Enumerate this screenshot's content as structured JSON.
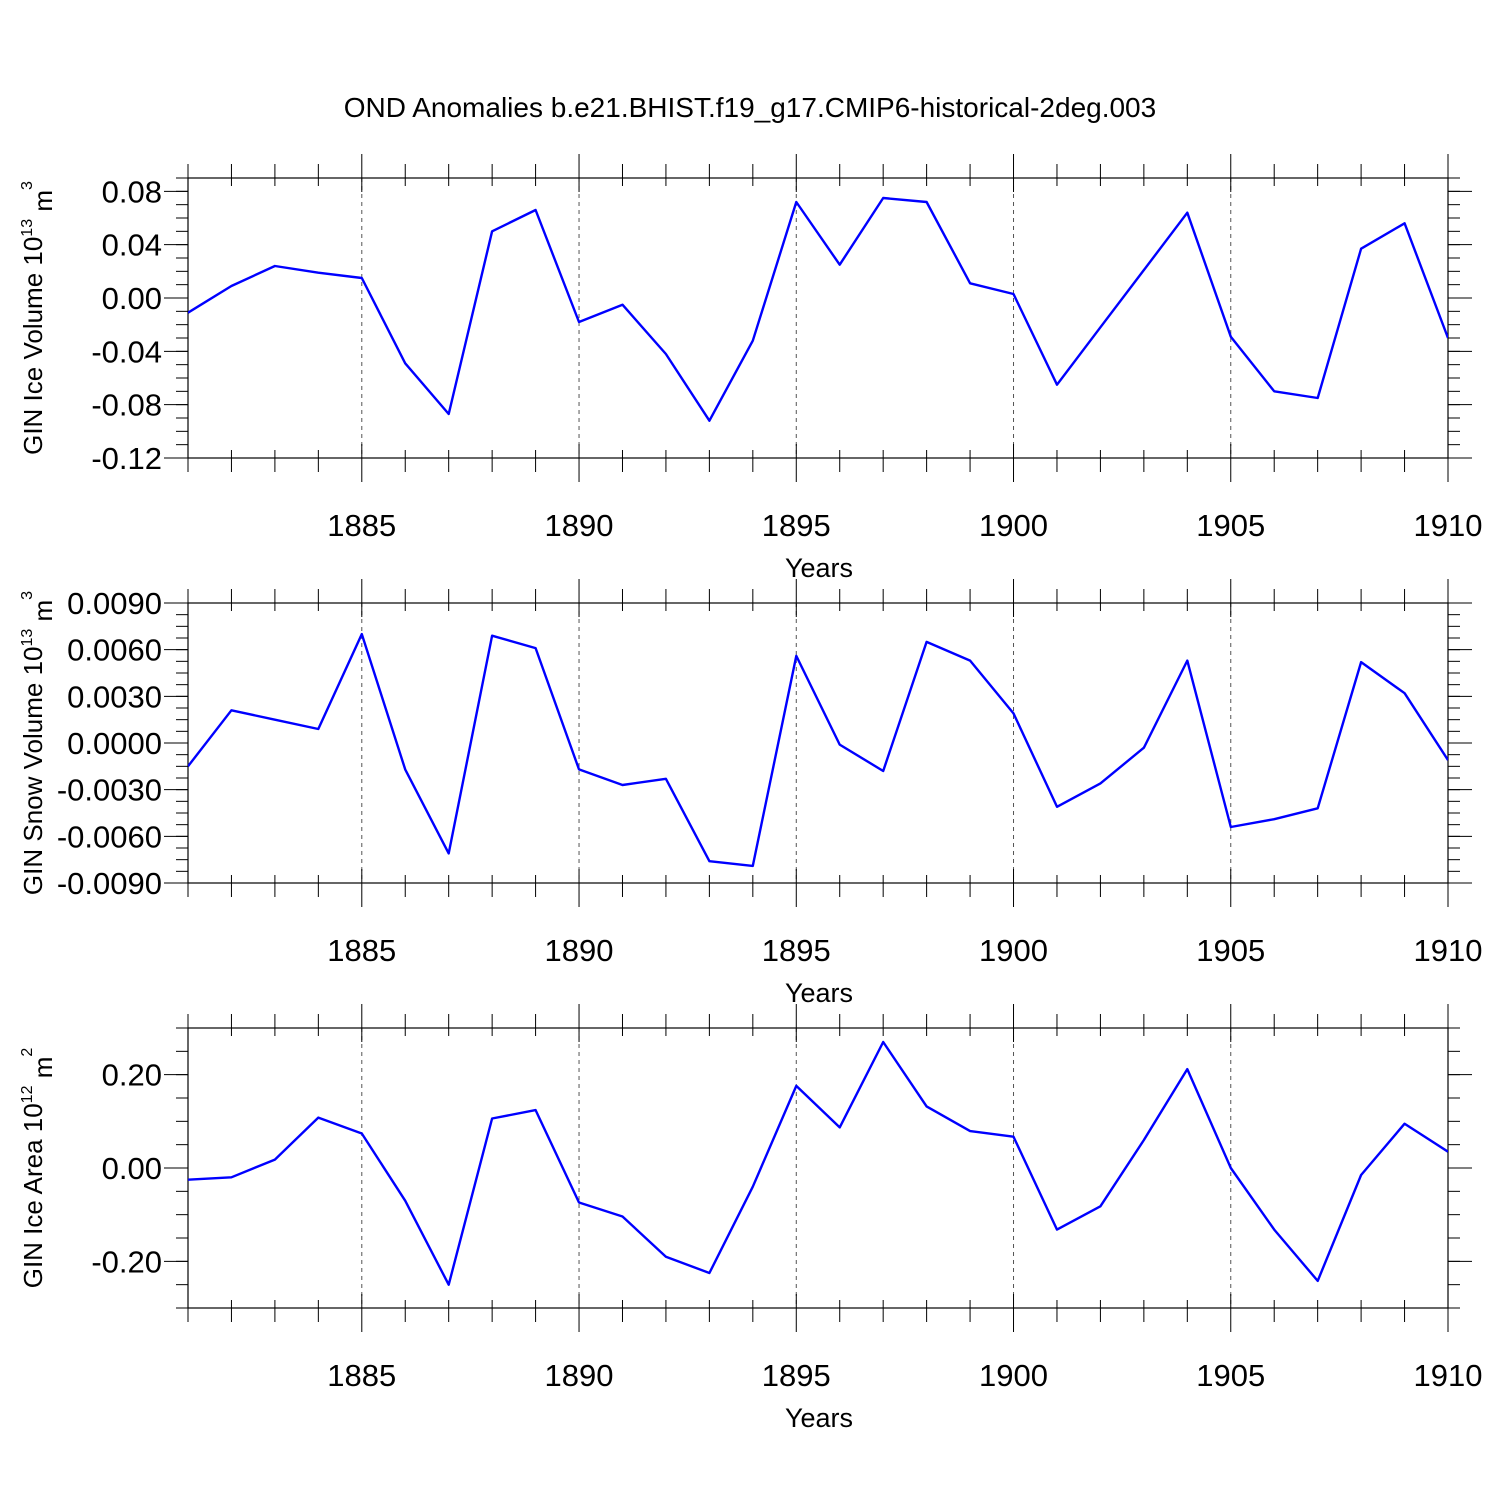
{
  "title": "OND Anomalies b.e21.BHIST.f19_g17.CMIP6-historical-2deg.003",
  "colors": {
    "line": "#0000ff",
    "axis": "#000000",
    "grid": "#555555"
  },
  "chart_data": [
    {
      "type": "line",
      "ylabel": "GIN Ice Volume 10",
      "ylabel_exp": "13",
      "ylabel_unit": " m",
      "ylabel_unit_exp": "3",
      "xlabel": "Years",
      "xlim": [
        1881,
        1910
      ],
      "ylim": [
        -0.12,
        0.09
      ],
      "yticks": [
        -0.12,
        -0.08,
        -0.04,
        0.0,
        0.04,
        0.08
      ],
      "ytick_labels": [
        "-0.12",
        "-0.08",
        "-0.04",
        "0.00",
        "0.04",
        "0.08"
      ],
      "xticks": [
        1885,
        1890,
        1895,
        1900,
        1905,
        1910
      ],
      "xtick_labels": [
        "1885",
        "1890",
        "1895",
        "1900",
        "1905",
        "1910"
      ],
      "grid": "vertical dashed at major x ticks",
      "x": [
        1881,
        1882,
        1883,
        1884,
        1885,
        1886,
        1887,
        1888,
        1889,
        1890,
        1891,
        1892,
        1893,
        1894,
        1895,
        1896,
        1897,
        1898,
        1899,
        1900,
        1901,
        1902,
        1903,
        1904,
        1905,
        1906,
        1907,
        1908,
        1909,
        1910
      ],
      "values": [
        -0.011,
        0.009,
        0.024,
        0.019,
        0.015,
        -0.049,
        -0.087,
        0.05,
        0.066,
        -0.018,
        -0.005,
        -0.042,
        -0.092,
        -0.032,
        0.072,
        0.025,
        0.075,
        0.072,
        0.011,
        0.003,
        -0.065,
        -0.022,
        0.021,
        0.064,
        -0.029,
        -0.07,
        -0.075,
        0.037,
        0.056,
        -0.03
      ]
    },
    {
      "type": "line",
      "ylabel": "GIN Snow Volume 10",
      "ylabel_exp": "13",
      "ylabel_unit": " m",
      "ylabel_unit_exp": "3",
      "xlabel": "Years",
      "xlim": [
        1881,
        1910
      ],
      "ylim": [
        -0.009,
        0.009
      ],
      "yticks": [
        -0.009,
        -0.006,
        -0.003,
        0.0,
        0.003,
        0.006,
        0.009
      ],
      "ytick_labels": [
        "-0.0090",
        "-0.0060",
        "-0.0030",
        "0.0000",
        "0.0030",
        "0.0060",
        "0.0090"
      ],
      "xticks": [
        1885,
        1890,
        1895,
        1900,
        1905,
        1910
      ],
      "xtick_labels": [
        "1885",
        "1890",
        "1895",
        "1900",
        "1905",
        "1910"
      ],
      "grid": "vertical dashed at major x ticks",
      "x": [
        1881,
        1882,
        1883,
        1884,
        1885,
        1886,
        1887,
        1888,
        1889,
        1890,
        1891,
        1892,
        1893,
        1894,
        1895,
        1896,
        1897,
        1898,
        1899,
        1900,
        1901,
        1902,
        1903,
        1904,
        1905,
        1906,
        1907,
        1908,
        1909,
        1910
      ],
      "values": [
        -0.0015,
        0.0021,
        0.0015,
        0.0009,
        0.007,
        -0.0017,
        -0.0071,
        0.0069,
        0.0061,
        -0.0017,
        -0.0027,
        -0.0023,
        -0.0076,
        -0.0079,
        0.0056,
        -0.0001,
        -0.0018,
        0.0065,
        0.0053,
        0.0019,
        -0.0041,
        -0.0026,
        -0.0003,
        0.0053,
        -0.0054,
        -0.0049,
        -0.0042,
        0.0052,
        0.0032,
        -0.0011
      ]
    },
    {
      "type": "line",
      "ylabel": "GIN Ice Area 10",
      "ylabel_exp": "12",
      "ylabel_unit": " m",
      "ylabel_unit_exp": "2",
      "xlabel": "Years",
      "xlim": [
        1881,
        1910
      ],
      "ylim": [
        -0.3,
        0.3
      ],
      "yticks": [
        -0.2,
        0.0,
        0.2
      ],
      "ytick_labels": [
        "-0.20",
        "0.00",
        "0.20"
      ],
      "xticks": [
        1885,
        1890,
        1895,
        1900,
        1905,
        1910
      ],
      "xtick_labels": [
        "1885",
        "1890",
        "1895",
        "1900",
        "1905",
        "1910"
      ],
      "grid": "vertical dashed at major x ticks",
      "x": [
        1881,
        1882,
        1883,
        1884,
        1885,
        1886,
        1887,
        1888,
        1889,
        1890,
        1891,
        1892,
        1893,
        1894,
        1895,
        1896,
        1897,
        1898,
        1899,
        1900,
        1901,
        1902,
        1903,
        1904,
        1905,
        1906,
        1907,
        1908,
        1909,
        1910
      ],
      "values": [
        -0.025,
        -0.02,
        0.018,
        0.108,
        0.074,
        -0.07,
        -0.25,
        0.106,
        0.124,
        -0.074,
        -0.104,
        -0.19,
        -0.225,
        -0.04,
        0.176,
        0.087,
        0.27,
        0.132,
        0.079,
        0.067,
        -0.132,
        -0.082,
        0.06,
        0.212,
        0.0,
        -0.132,
        -0.242,
        -0.015,
        0.095,
        0.035
      ]
    }
  ]
}
